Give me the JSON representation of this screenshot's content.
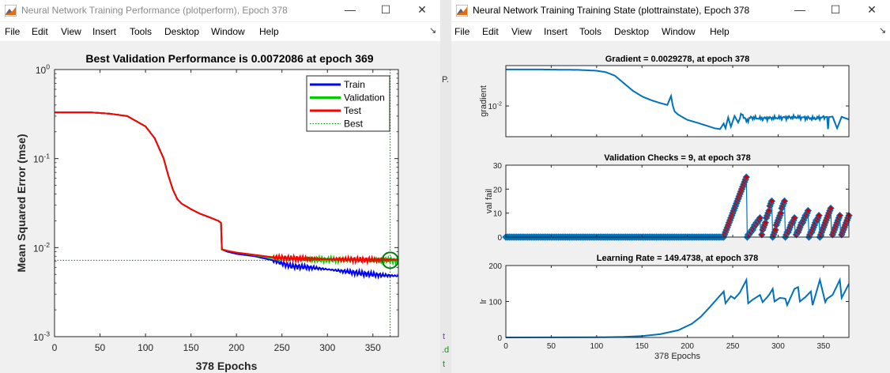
{
  "left_window": {
    "title": "Neural Network Training Performance (plotperform), Epoch 378",
    "menu": [
      "File",
      "Edit",
      "View",
      "Insert",
      "Tools",
      "Desktop",
      "Window",
      "Help"
    ],
    "menu_arrow": "↘"
  },
  "right_window": {
    "title": "Neural Network Training Training State (plottrainstate), Epoch 378",
    "menu": [
      "File",
      "Edit",
      "View",
      "Insert",
      "Tools",
      "Desktop",
      "Window",
      "Help"
    ],
    "menu_arrow": "↘"
  },
  "window_buttons": {
    "minimize": "—",
    "maximize": "☐",
    "close": "✕"
  },
  "background_fragments": [
    "P.",
    "t",
    ".d",
    "t"
  ],
  "chart_data": [
    {
      "type": "line",
      "id": "performance",
      "title": "Best Validation Performance is 0.0072086 at epoch 369",
      "xlabel": "378 Epochs",
      "ylabel": "Mean Squared Error  (mse)",
      "yscale": "log",
      "xlim": [
        0,
        378
      ],
      "ylim": [
        0.001,
        1
      ],
      "xticks": [
        "0",
        "50",
        "100",
        "150",
        "200",
        "250",
        "300",
        "350"
      ],
      "yticks": [
        {
          "base": "10",
          "exp": "0"
        },
        {
          "base": "10",
          "exp": "-1"
        },
        {
          "base": "10",
          "exp": "-2"
        },
        {
          "base": "10",
          "exp": "-3"
        }
      ],
      "legend": [
        {
          "name": "Train",
          "color": "#0000ff",
          "style": "solid"
        },
        {
          "name": "Validation",
          "color": "#00cc00",
          "style": "solid"
        },
        {
          "name": "Test",
          "color": "#ff0000",
          "style": "solid"
        },
        {
          "name": "Best",
          "color": "#008000",
          "style": "dotted"
        }
      ],
      "legend_position": "top-right",
      "best": {
        "epoch": 369,
        "value": 0.0072086
      },
      "series": [
        {
          "name": "Train",
          "color": "#0000ff",
          "x": [
            0,
            40,
            60,
            80,
            100,
            110,
            120,
            125,
            130,
            135,
            140,
            145,
            150,
            160,
            170,
            180,
            183,
            184,
            190,
            200,
            220,
            240,
            260,
            280,
            300,
            320,
            340,
            360,
            378
          ],
          "y": [
            0.33,
            0.33,
            0.32,
            0.3,
            0.23,
            0.17,
            0.1,
            0.065,
            0.045,
            0.035,
            0.031,
            0.029,
            0.027,
            0.024,
            0.022,
            0.02,
            0.019,
            0.0095,
            0.009,
            0.0085,
            0.008,
            0.0072,
            0.0062,
            0.006,
            0.0057,
            0.0054,
            0.0051,
            0.0049,
            0.0048
          ]
        },
        {
          "name": "Validation",
          "color": "#00cc00",
          "x": [
            0,
            40,
            60,
            80,
            100,
            110,
            120,
            125,
            130,
            135,
            140,
            145,
            150,
            160,
            170,
            180,
            183,
            184,
            190,
            200,
            220,
            240,
            260,
            280,
            300,
            320,
            340,
            360,
            369,
            378
          ],
          "y": [
            0.33,
            0.33,
            0.32,
            0.3,
            0.23,
            0.17,
            0.1,
            0.065,
            0.045,
            0.035,
            0.031,
            0.029,
            0.027,
            0.024,
            0.022,
            0.02,
            0.019,
            0.0095,
            0.0092,
            0.0088,
            0.0082,
            0.0076,
            0.0075,
            0.0074,
            0.0073,
            0.0073,
            0.0073,
            0.0072,
            0.0072,
            0.0072
          ]
        },
        {
          "name": "Test",
          "color": "#ff0000",
          "x": [
            0,
            40,
            60,
            80,
            100,
            110,
            120,
            125,
            130,
            135,
            140,
            145,
            150,
            160,
            170,
            180,
            183,
            184,
            190,
            200,
            220,
            240,
            260,
            280,
            300,
            320,
            340,
            360,
            378
          ],
          "y": [
            0.33,
            0.33,
            0.32,
            0.3,
            0.23,
            0.17,
            0.1,
            0.065,
            0.045,
            0.035,
            0.031,
            0.029,
            0.027,
            0.024,
            0.022,
            0.02,
            0.019,
            0.0096,
            0.0092,
            0.0088,
            0.0083,
            0.0078,
            0.0076,
            0.0075,
            0.0074,
            0.0074,
            0.0073,
            0.0073,
            0.0073
          ]
        }
      ]
    },
    {
      "type": "line",
      "id": "gradient",
      "title": "Gradient = 0.0029278, at epoch 378",
      "ylabel": "gradient",
      "yscale": "log",
      "xlim": [
        0,
        378
      ],
      "ylim": [
        0.0006,
        0.4
      ],
      "yticks": [
        {
          "base": "10",
          "exp": "-2"
        }
      ],
      "color": "#0072bd",
      "x": [
        0,
        40,
        80,
        100,
        110,
        120,
        130,
        140,
        150,
        160,
        170,
        178,
        182,
        184,
        186,
        190,
        200,
        210,
        220,
        230,
        236,
        240,
        242,
        245,
        248,
        252,
        256,
        260,
        265,
        270,
        280,
        300,
        320,
        340,
        354,
        355,
        356,
        360,
        365,
        370,
        378
      ],
      "y": [
        0.28,
        0.28,
        0.27,
        0.25,
        0.22,
        0.16,
        0.08,
        0.04,
        0.024,
        0.017,
        0.013,
        0.011,
        0.025,
        0.01,
        0.006,
        0.0045,
        0.0028,
        0.0022,
        0.0017,
        0.0013,
        0.0012,
        0.002,
        0.0013,
        0.0035,
        0.0015,
        0.004,
        0.0022,
        0.005,
        0.0025,
        0.0035,
        0.0032,
        0.0034,
        0.0036,
        0.0032,
        0.0037,
        0.0012,
        0.0036,
        0.0038,
        0.0013,
        0.0037,
        0.0029
      ]
    },
    {
      "type": "scatter",
      "id": "valcheck",
      "title": "Validation Checks = 9, at epoch 378",
      "ylabel": "val fail",
      "xlim": [
        0,
        378
      ],
      "ylim": [
        0,
        30
      ],
      "yticks": [
        "0",
        "10",
        "20",
        "30"
      ],
      "color": "#0072bd",
      "marker_color": "#d00000",
      "segments": [
        [
          0,
          240,
          0
        ],
        [
          240,
          265,
          25
        ],
        [
          266,
          280,
          8
        ],
        [
          281,
          293,
          15
        ],
        [
          294,
          307,
          15
        ],
        [
          308,
          318,
          8
        ],
        [
          319,
          333,
          11
        ],
        [
          334,
          345,
          9
        ],
        [
          346,
          358,
          12
        ],
        [
          359,
          369,
          10
        ],
        [
          369,
          378,
          9
        ]
      ]
    },
    {
      "type": "line",
      "id": "lr",
      "title": "Learning Rate = 149.4738, at epoch 378",
      "xlabel": "378 Epochs",
      "ylabel": "lr",
      "xlim": [
        0,
        378
      ],
      "ylim": [
        0,
        200
      ],
      "xticks": [
        "0",
        "50",
        "100",
        "150",
        "200",
        "250",
        "300",
        "350"
      ],
      "yticks": [
        "0",
        "100",
        "200"
      ],
      "color": "#0072bd",
      "x": [
        0,
        100,
        130,
        150,
        170,
        190,
        205,
        215,
        225,
        233,
        240,
        242,
        248,
        252,
        258,
        265,
        267,
        272,
        280,
        283,
        290,
        294,
        296,
        302,
        308,
        310,
        318,
        322,
        324,
        330,
        336,
        338,
        346,
        352,
        354,
        360,
        368,
        370,
        378
      ],
      "y": [
        0,
        0.5,
        1.5,
        4,
        9,
        20,
        38,
        58,
        85,
        108,
        128,
        95,
        115,
        108,
        125,
        160,
        95,
        105,
        118,
        98,
        118,
        135,
        100,
        110,
        108,
        90,
        135,
        140,
        100,
        112,
        128,
        90,
        160,
        98,
        108,
        118,
        160,
        110,
        149
      ]
    }
  ]
}
